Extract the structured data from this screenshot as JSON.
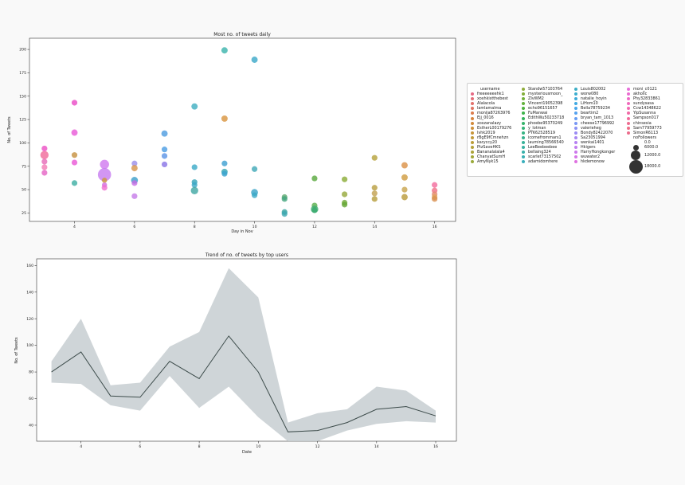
{
  "chart_data": [
    {
      "type": "scatter",
      "title": "Most no. of tweets daily",
      "xlabel": "Day in Nov",
      "ylabel": "No. of Tweets",
      "xlim": [
        2.5,
        16.7
      ],
      "ylim": [
        16,
        212
      ],
      "xticks": [
        "4",
        "6",
        "8",
        "10",
        "12",
        "14",
        "16"
      ],
      "yticks": [
        "25",
        "50",
        "75",
        "100",
        "125",
        "150",
        "175",
        "200"
      ],
      "points": [
        {
          "x": 3,
          "y": 94,
          "c": "#ec4fc4",
          "s": 1.0
        },
        {
          "x": 3,
          "y": 87,
          "c": "#f06a9a",
          "s": 1.45
        },
        {
          "x": 3,
          "y": 80,
          "c": "#e66ab8",
          "s": 1.0
        },
        {
          "x": 3,
          "y": 74,
          "c": "#f37cb5",
          "s": 1.0
        },
        {
          "x": 3,
          "y": 68,
          "c": "#e563c4",
          "s": 1.0
        },
        {
          "x": 4,
          "y": 143,
          "c": "#ea48c6",
          "s": 1.0
        },
        {
          "x": 4,
          "y": 111,
          "c": "#e858d7",
          "s": 1.1
        },
        {
          "x": 4,
          "y": 87,
          "c": "#c6903f",
          "s": 1.0
        },
        {
          "x": 4,
          "y": 79,
          "c": "#ea56d6",
          "s": 1.0
        },
        {
          "x": 4,
          "y": 57,
          "c": "#3caea3",
          "s": 1.0
        },
        {
          "x": 5,
          "y": 77,
          "c": "#cf78ef",
          "s": 1.6
        },
        {
          "x": 5,
          "y": 66,
          "c": "#c77cf0",
          "s": 2.3
        },
        {
          "x": 5,
          "y": 60,
          "c": "#cc9a38",
          "s": 0.9
        },
        {
          "x": 5,
          "y": 55,
          "c": "#d16bdd",
          "s": 0.9
        },
        {
          "x": 5,
          "y": 52,
          "c": "#ef6fd0",
          "s": 1.0
        },
        {
          "x": 6,
          "y": 78,
          "c": "#9a8de8",
          "s": 1.0
        },
        {
          "x": 6,
          "y": 73,
          "c": "#d6944b",
          "s": 1.1
        },
        {
          "x": 6,
          "y": 60,
          "c": "#3a9ec9",
          "s": 1.2
        },
        {
          "x": 6,
          "y": 57,
          "c": "#c66ce3",
          "s": 1.0
        },
        {
          "x": 6,
          "y": 43,
          "c": "#c57ae9",
          "s": 1.0
        },
        {
          "x": 7,
          "y": 110,
          "c": "#4c9be0",
          "s": 1.1
        },
        {
          "x": 7,
          "y": 93,
          "c": "#4a9ce3",
          "s": 1.0
        },
        {
          "x": 7,
          "y": 86,
          "c": "#5a94e6",
          "s": 1.0
        },
        {
          "x": 7,
          "y": 77,
          "c": "#8873e6",
          "s": 1.0
        },
        {
          "x": 8,
          "y": 139,
          "c": "#3eaec1",
          "s": 1.1
        },
        {
          "x": 8,
          "y": 74,
          "c": "#3aa9c7",
          "s": 1.0
        },
        {
          "x": 8,
          "y": 58,
          "c": "#35a2b8",
          "s": 1.0
        },
        {
          "x": 8,
          "y": 55,
          "c": "#3ba7c6",
          "s": 1.0
        },
        {
          "x": 8,
          "y": 49,
          "c": "#3ea6a2",
          "s": 1.3
        },
        {
          "x": 9,
          "y": 199,
          "c": "#3ab3ab",
          "s": 1.1
        },
        {
          "x": 9,
          "y": 126,
          "c": "#d8943d",
          "s": 1.1
        },
        {
          "x": 9,
          "y": 78,
          "c": "#3c9fd1",
          "s": 1.0
        },
        {
          "x": 9,
          "y": 69,
          "c": "#37a6b2",
          "s": 1.1
        },
        {
          "x": 9,
          "y": 67,
          "c": "#3aa3d0",
          "s": 1.0
        },
        {
          "x": 10,
          "y": 189,
          "c": "#3aa7c8",
          "s": 1.1
        },
        {
          "x": 10,
          "y": 72,
          "c": "#3ea8b6",
          "s": 1.0
        },
        {
          "x": 10,
          "y": 47,
          "c": "#38a3c7",
          "s": 1.2
        },
        {
          "x": 10,
          "y": 44,
          "c": "#3ba9c7",
          "s": 1.0
        },
        {
          "x": 11,
          "y": 42,
          "c": "#5aa86e",
          "s": 1.0
        },
        {
          "x": 11,
          "y": 40,
          "c": "#44a57e",
          "s": 1.0
        },
        {
          "x": 11,
          "y": 26,
          "c": "#32a39d",
          "s": 1.0
        },
        {
          "x": 11,
          "y": 24,
          "c": "#3da8b2",
          "s": 1.0
        },
        {
          "x": 12,
          "y": 62,
          "c": "#58a83c",
          "s": 1.0
        },
        {
          "x": 12,
          "y": 33,
          "c": "#5aae4c",
          "s": 1.0
        },
        {
          "x": 12,
          "y": 29,
          "c": "#3fae72",
          "s": 1.3
        },
        {
          "x": 12,
          "y": 28,
          "c": "#37aa6e",
          "s": 1.0
        },
        {
          "x": 13,
          "y": 61,
          "c": "#8aab34",
          "s": 1.0
        },
        {
          "x": 13,
          "y": 45,
          "c": "#95a83a",
          "s": 1.0
        },
        {
          "x": 13,
          "y": 36,
          "c": "#74ab3c",
          "s": 1.0
        },
        {
          "x": 13,
          "y": 34,
          "c": "#65a636",
          "s": 1.0
        },
        {
          "x": 14,
          "y": 84,
          "c": "#b5a13a",
          "s": 1.0
        },
        {
          "x": 14,
          "y": 52,
          "c": "#b89d3e",
          "s": 1.0
        },
        {
          "x": 14,
          "y": 46,
          "c": "#c2a04f",
          "s": 1.0
        },
        {
          "x": 14,
          "y": 40,
          "c": "#b69e3c",
          "s": 1.0
        },
        {
          "x": 15,
          "y": 76,
          "c": "#db9045",
          "s": 1.1
        },
        {
          "x": 15,
          "y": 63,
          "c": "#cf9b3e",
          "s": 1.1
        },
        {
          "x": 15,
          "y": 50,
          "c": "#c8a44c",
          "s": 1.0
        },
        {
          "x": 15,
          "y": 42,
          "c": "#b99a3a",
          "s": 1.1
        },
        {
          "x": 16,
          "y": 55,
          "c": "#f36c9c",
          "s": 1.0
        },
        {
          "x": 16,
          "y": 49,
          "c": "#ef6f84",
          "s": 1.0
        },
        {
          "x": 16,
          "y": 45,
          "c": "#e58a6f",
          "s": 1.0
        },
        {
          "x": 16,
          "y": 42,
          "c": "#e0a057",
          "s": 1.0
        },
        {
          "x": 16,
          "y": 40,
          "c": "#d88e4e",
          "s": 1.0
        }
      ],
      "legend": {
        "placement": "outside-right",
        "header": "username",
        "columns": [
          [
            {
              "name": "freeeeeeehk1",
              "color": "#e66a85"
            },
            {
              "name": "xoxhkistthebest",
              "color": "#e46d79"
            },
            {
              "name": "Alalacola",
              "color": "#e3716c"
            },
            {
              "name": "lamlamalma",
              "color": "#e07462"
            },
            {
              "name": "monija87263976",
              "color": "#dc7d4d"
            },
            {
              "name": "Ejj_0016",
              "color": "#d7843d"
            },
            {
              "name": "xoxzanalazy",
              "color": "#d28a3a"
            },
            {
              "name": "EstherL00179276",
              "color": "#cd903a"
            },
            {
              "name": "lvhk2019",
              "color": "#c7963a"
            },
            {
              "name": "rBgE9fCmnehzn",
              "color": "#c19a3a"
            },
            {
              "name": "karyccy20",
              "color": "#bb9e3a"
            },
            {
              "name": "PtzSaveHKS",
              "color": "#b4a13a"
            },
            {
              "name": "Bananalalala4",
              "color": "#aca43a"
            },
            {
              "name": "ChanyatSumH",
              "color": "#a3a73a"
            },
            {
              "name": "AmyNyk15",
              "color": "#9aaa3a"
            }
          ],
          [
            {
              "name": "Standw57103764",
              "color": "#8fac3a"
            },
            {
              "name": "mysteriousmoon_",
              "color": "#82ae3a"
            },
            {
              "name": "ZIvWM2",
              "color": "#73b03a"
            },
            {
              "name": "Vincent19052398",
              "color": "#62b13b"
            },
            {
              "name": "echo96151657",
              "color": "#4fb23f"
            },
            {
              "name": "FuManwai",
              "color": "#3db34b"
            },
            {
              "name": "EdithWu50233718",
              "color": "#34b35c"
            },
            {
              "name": "phoebe95370249",
              "color": "#34b36a"
            },
            {
              "name": "y_lotman",
              "color": "#35b377"
            },
            {
              "name": "PYK62528519",
              "color": "#36b383"
            },
            {
              "name": "icomefrommars1",
              "color": "#37b28e"
            },
            {
              "name": "lauming78566540",
              "color": "#38b298"
            },
            {
              "name": "LeeBeebeebee",
              "color": "#39b1a1"
            },
            {
              "name": "bellaing324",
              "color": "#39b1aa"
            },
            {
              "name": "scarlet73157502",
              "color": "#3ab0b3"
            },
            {
              "name": "adamidomhere",
              "color": "#3aafbc"
            }
          ],
          [
            {
              "name": "Louis802002",
              "color": "#3baec5"
            },
            {
              "name": "worw080",
              "color": "#3cadcf"
            },
            {
              "name": "natalie_hoyin",
              "color": "#3eabd8"
            },
            {
              "name": "LiHom10",
              "color": "#41a9e2"
            },
            {
              "name": "Bella78759234",
              "color": "#48a6ea"
            },
            {
              "name": "beartim2",
              "color": "#55a2ef"
            },
            {
              "name": "bryan_tam_1013",
              "color": "#669df2"
            },
            {
              "name": "cheese17796992",
              "color": "#7897f4"
            },
            {
              "name": "valerieheg",
              "color": "#8a91f4"
            },
            {
              "name": "Bondy82422070",
              "color": "#9a8bf3"
            },
            {
              "name": "Sa23051994",
              "color": "#a986f2"
            },
            {
              "name": "wenkai1401",
              "color": "#b681f1"
            },
            {
              "name": "Hkigers",
              "color": "#c27cef"
            },
            {
              "name": "HarryHongkonger",
              "color": "#cc78ec"
            },
            {
              "name": "wuwater2",
              "color": "#d675e7"
            },
            {
              "name": "hkdemonow",
              "color": "#df71e1"
            }
          ],
          [
            {
              "name": "moni_c0121",
              "color": "#e66ed9"
            },
            {
              "name": "akholic",
              "color": "#eb6bd1"
            },
            {
              "name": "Phy32833861",
              "color": "#ee6ac7"
            },
            {
              "name": "sundysasa",
              "color": "#f06abd"
            },
            {
              "name": "Ccw14348622",
              "color": "#f16ab2"
            },
            {
              "name": "YipSusanna",
              "color": "#f16aa7"
            },
            {
              "name": "Sampson017",
              "color": "#f06b9c"
            },
            {
              "name": "chinsesia",
              "color": "#ee6c91"
            },
            {
              "name": "Sam77959773",
              "color": "#ed6d87"
            },
            {
              "name": "SimonR6113",
              "color": "#ec6c8c"
            }
          ]
        ],
        "size_title": "noFollowers",
        "sizes": [
          {
            "label": "0.0",
            "d": 0
          },
          {
            "label": "6000.0",
            "d": 7
          },
          {
            "label": "12000.0",
            "d": 12
          },
          {
            "label": "18000.0",
            "d": 17
          }
        ]
      }
    },
    {
      "type": "line",
      "title": "Trend of no. of tweets by top users",
      "xlabel": "Date",
      "ylabel": "No. of Tweets",
      "xlim": [
        2.5,
        16.7
      ],
      "ylim": [
        28,
        165
      ],
      "xticks": [
        "4",
        "6",
        "8",
        "10",
        "12",
        "14",
        "16"
      ],
      "yticks": [
        "40",
        "60",
        "80",
        "100",
        "120",
        "140",
        "160"
      ],
      "line_color": "#3d4c4b",
      "band_color": "#c7ced1",
      "x": [
        3,
        4,
        5,
        6,
        7,
        8,
        9,
        10,
        11,
        12,
        13,
        14,
        15,
        16
      ],
      "y": [
        80,
        95,
        62,
        61,
        88,
        75,
        107,
        80,
        35,
        36,
        42,
        52,
        54,
        47
      ],
      "ci_low": [
        72,
        71,
        55,
        51,
        77,
        53,
        69,
        46,
        28,
        28,
        36,
        41,
        43,
        42
      ],
      "ci_high": [
        88,
        120,
        70,
        72,
        99,
        110,
        158,
        136,
        42,
        49,
        52,
        69,
        66,
        51
      ]
    }
  ]
}
